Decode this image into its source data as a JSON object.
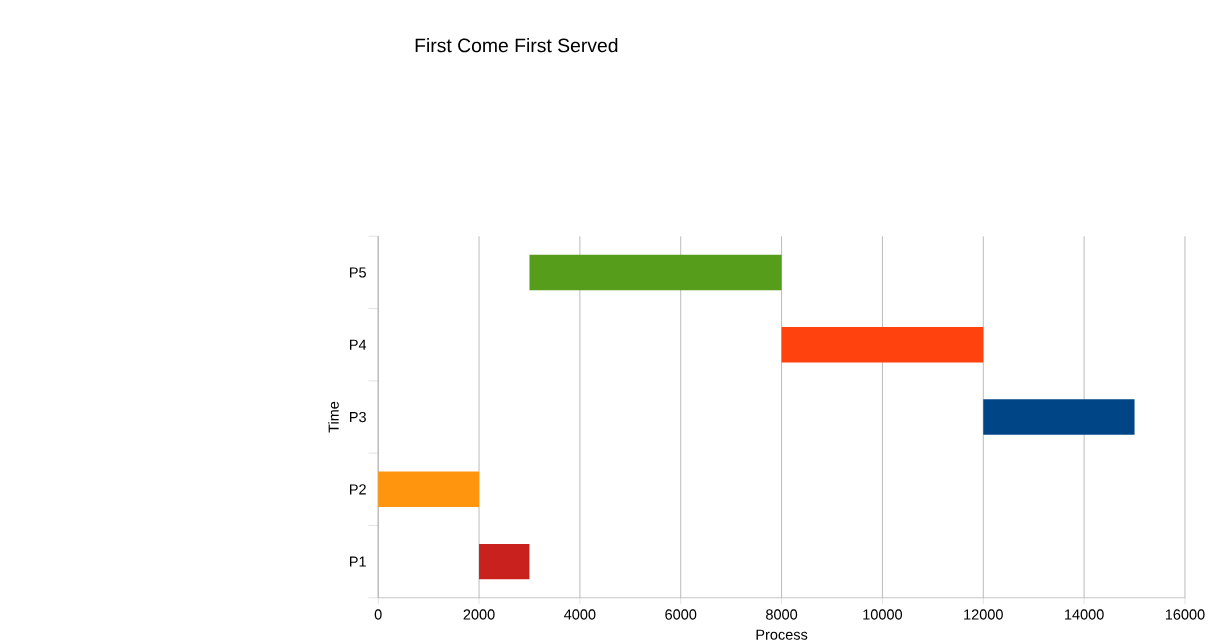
{
  "chart_data": {
    "type": "bar",
    "orientation": "horizontal",
    "title": "First Come First Served",
    "xlabel": "Process",
    "ylabel": "Time",
    "categories": [
      "P5",
      "P4",
      "P3",
      "P2",
      "P1"
    ],
    "base": [
      3000,
      8000,
      12000,
      0,
      2000
    ],
    "values": [
      5000,
      4000,
      3000,
      2000,
      1000
    ],
    "colors": [
      "#579d1c",
      "#ff420e",
      "#004586",
      "#ff950e",
      "#c9211e"
    ],
    "xlim": [
      0,
      16000
    ],
    "xticks": [
      0,
      2000,
      4000,
      6000,
      8000,
      10000,
      12000,
      14000,
      16000
    ],
    "grid": "x"
  }
}
